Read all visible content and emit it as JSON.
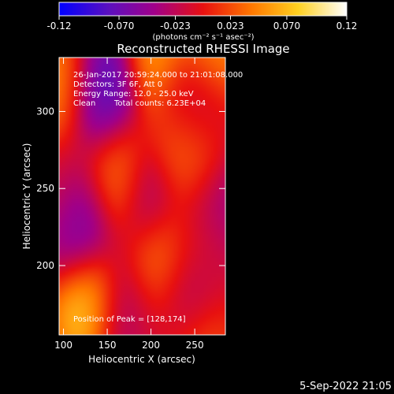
{
  "chart_data": {
    "type": "heatmap",
    "title": "Reconstructed RHESSI Image",
    "xlabel": "Heliocentric X (arcsec)",
    "ylabel": "Heliocentric Y (arcsec)",
    "x_ticks": [
      100,
      150,
      200,
      250
    ],
    "y_ticks": [
      200,
      250,
      300
    ],
    "xlim": [
      95,
      285
    ],
    "ylim": [
      155,
      335
    ],
    "colorbar": {
      "ticks": [
        "-0.12",
        "-0.070",
        "-0.023",
        "0.023",
        "0.070",
        "0.12"
      ],
      "tick_values": [
        -0.12,
        -0.07,
        -0.023,
        0.023,
        0.07,
        0.12
      ],
      "range": [
        -0.12,
        0.12
      ],
      "unit_label": "(photons cm⁻² s⁻¹ asec⁻²)",
      "colormap": [
        "#0000ff",
        "#6a00a8",
        "#b0006a",
        "#ff3a00",
        "#ffa000",
        "#ffff40",
        "#ffffff"
      ]
    },
    "peaks": [
      {
        "x": 128,
        "y": 174,
        "value": 0.12
      },
      {
        "x": 214,
        "y": 203,
        "value": 0.1
      },
      {
        "x": 162,
        "y": 258,
        "value": 0.07
      },
      {
        "x": 265,
        "y": 330,
        "value": 0.1
      },
      {
        "x": 95,
        "y": 318,
        "value": 0.07
      },
      {
        "x": 210,
        "y": 335,
        "value": 0.08
      },
      {
        "x": 258,
        "y": 215,
        "value": 0.03
      },
      {
        "x": 95,
        "y": 245,
        "value": 0.0
      },
      {
        "x": 196,
        "y": 158,
        "value": 0.0
      },
      {
        "x": 255,
        "y": 155,
        "value": 0.05
      },
      {
        "x": 240,
        "y": 273,
        "value": 0.06
      },
      {
        "x": 245,
        "y": 284,
        "value": 0.06
      }
    ],
    "troughs": [
      {
        "x": 145,
        "y": 311,
        "value": -0.11
      },
      {
        "x": 250,
        "y": 305,
        "value": -0.12
      },
      {
        "x": 118,
        "y": 225,
        "value": -0.1
      },
      {
        "x": 200,
        "y": 242,
        "value": -0.07
      },
      {
        "x": 240,
        "y": 185,
        "value": -0.09
      },
      {
        "x": 168,
        "y": 168,
        "value": -0.06
      },
      {
        "x": 270,
        "y": 235,
        "value": -0.07
      }
    ]
  },
  "info": {
    "line1": "26-Jan-2017 20:59:24.000 to 21:01:08.000",
    "line2": "Detectors: 3F 6F, Att 0",
    "line3": "Energy Range: 12.0 - 25.0 keV",
    "line4_a": "Clean",
    "line4_b": "Total counts: 6.23E+04",
    "peak_label": "Position of Peak = [128,174]"
  },
  "timestamp": "5-Sep-2022 21:05"
}
